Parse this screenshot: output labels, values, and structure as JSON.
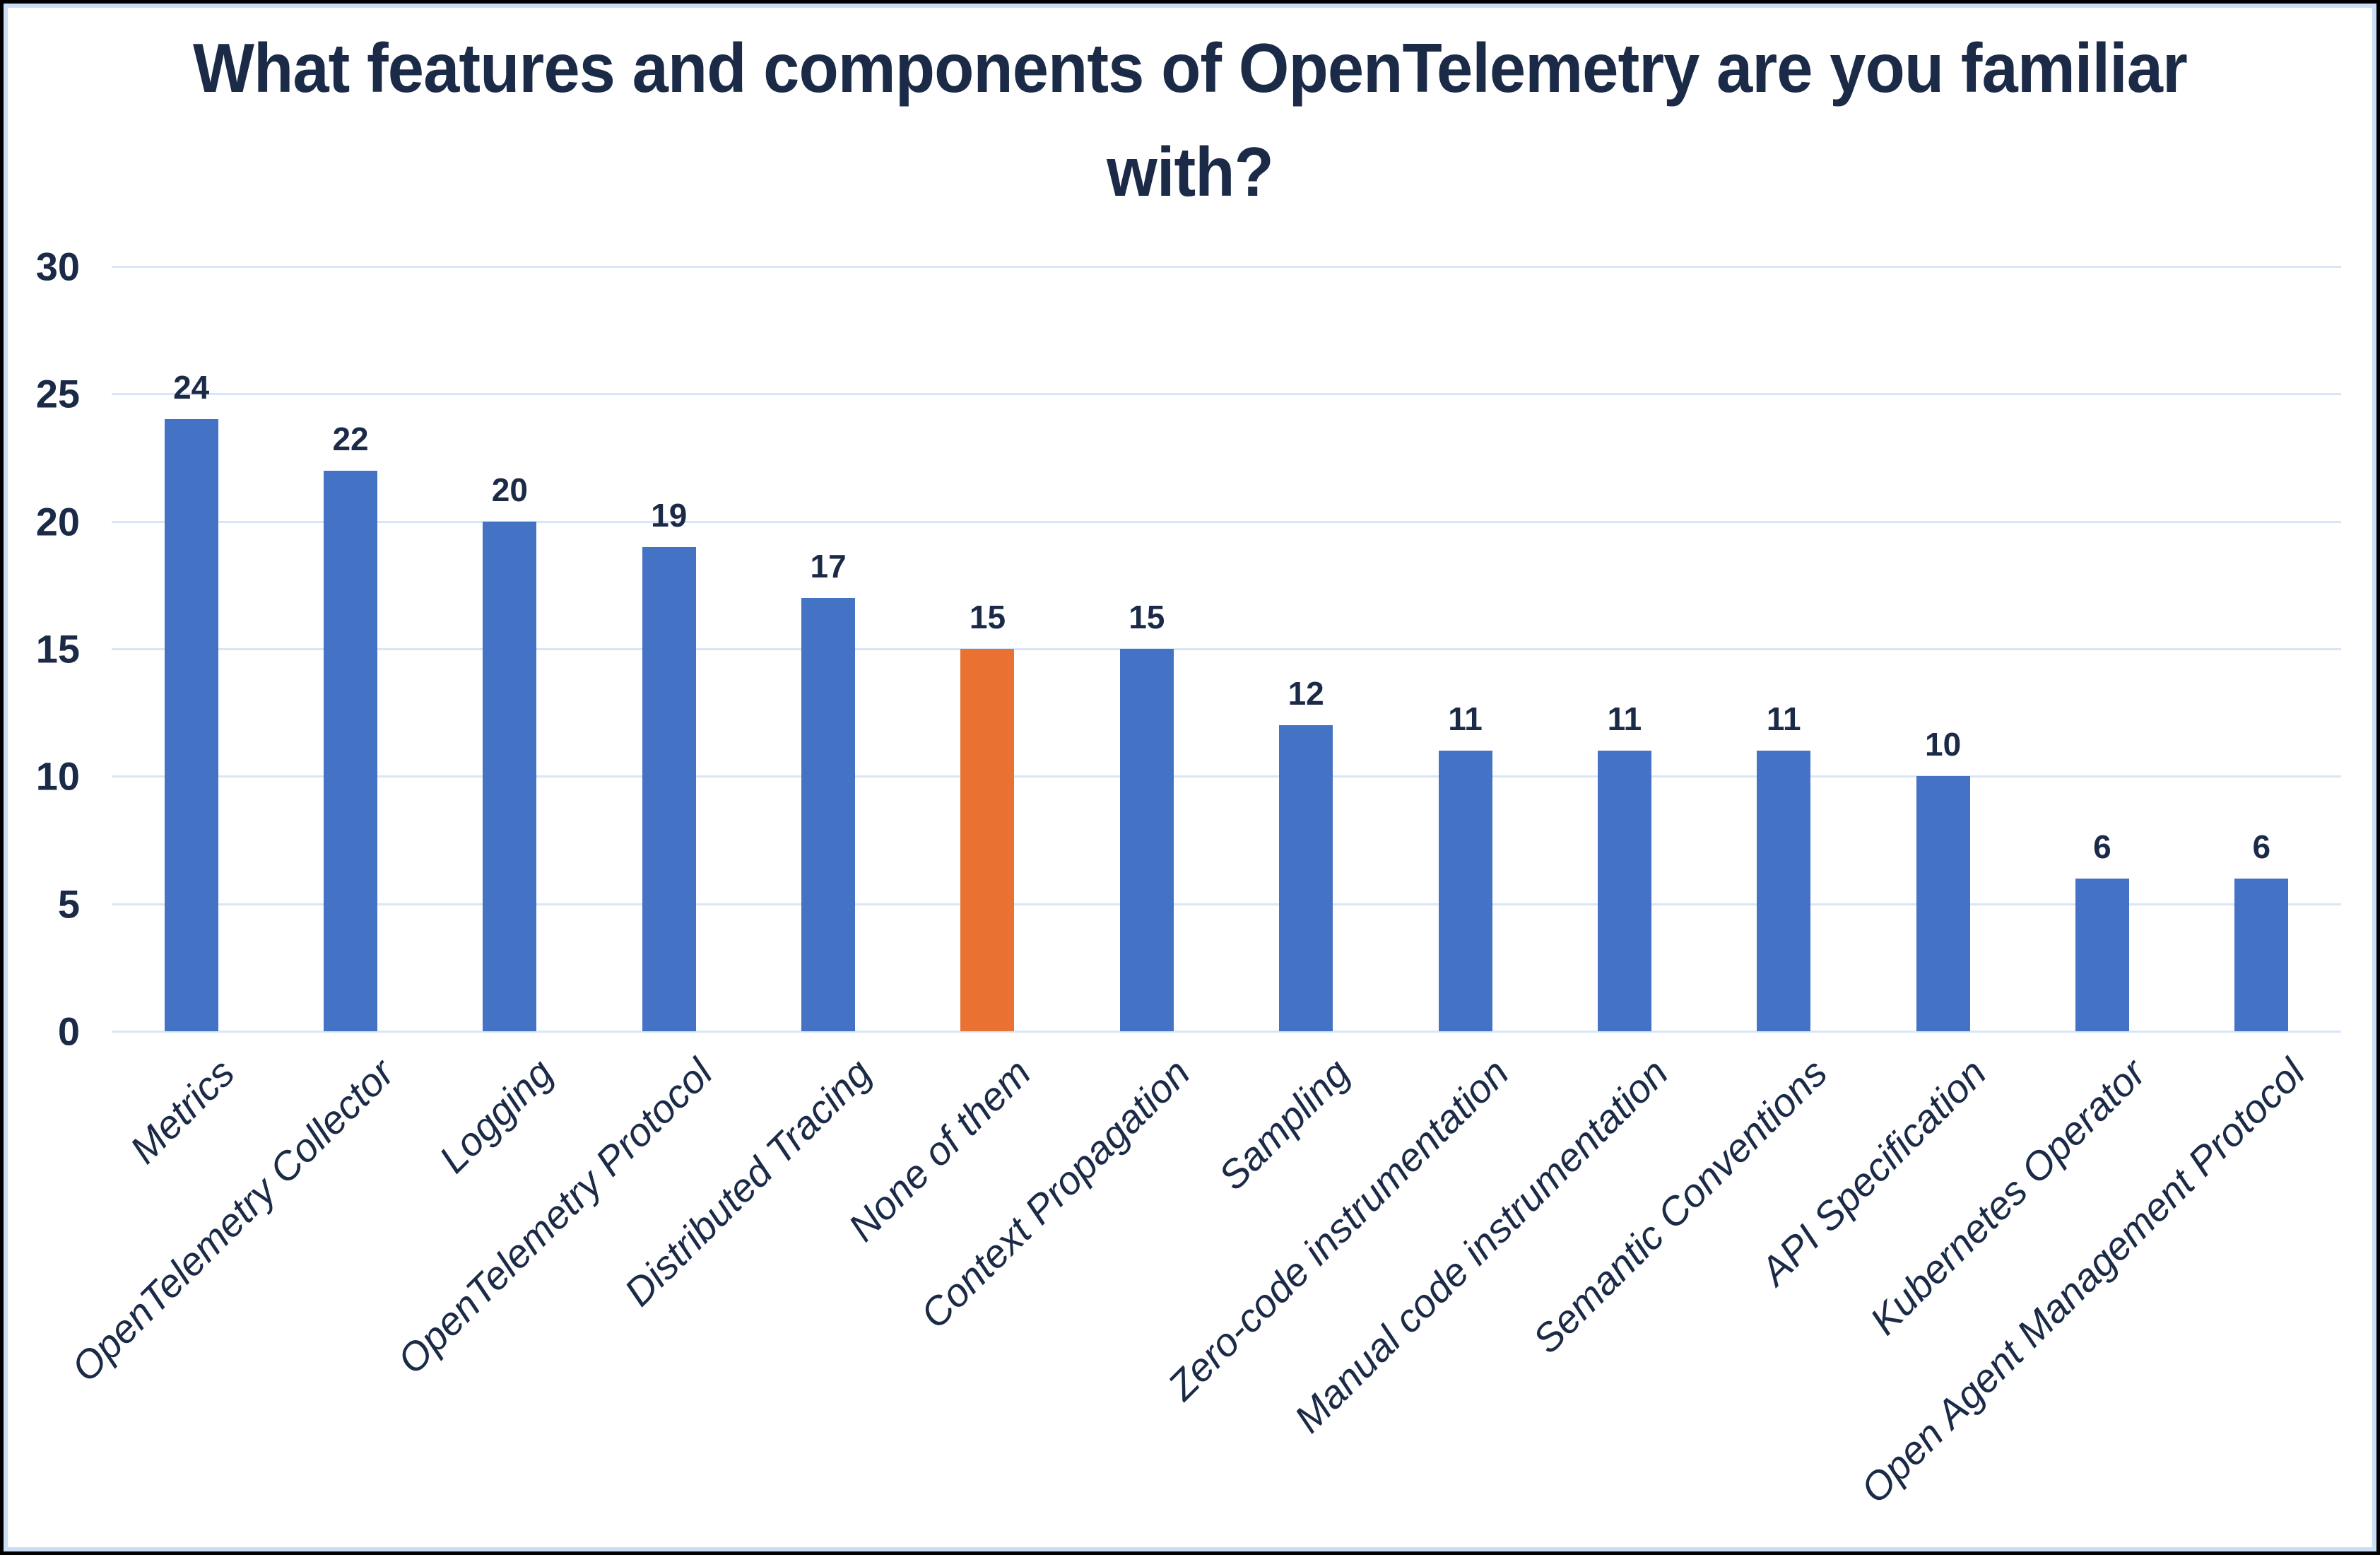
{
  "frame": {
    "outer_border_color": "#010101",
    "inner_border_color": "#CBDEF5",
    "background": "#FFFFFF"
  },
  "chart_data": {
    "type": "bar",
    "title": "What features and components of OpenTelemetry are you familiar with?",
    "categories": [
      "Metrics",
      "OpenTelemetry Collector",
      "Logging",
      "OpenTelemetry Protocol",
      "Distributed Tracing",
      "None of them",
      "Context Propagation",
      "Sampling",
      "Zero-code instrumentation",
      "Manual code instrumentation",
      "Semantic Conventions",
      "API Specification",
      "Kubernetes Operator",
      "Open Agent Management Protocol"
    ],
    "values": [
      24,
      22,
      20,
      19,
      17,
      15,
      15,
      12,
      11,
      11,
      11,
      10,
      6,
      6
    ],
    "highlight_index": 5,
    "bar_color": "#4472C4",
    "highlight_color": "#E97132",
    "gridline_color": "#D9E6F7",
    "text_color": "#1B2B47",
    "xlabel": "",
    "ylabel": "",
    "ylim": [
      0,
      30
    ],
    "y_ticks": [
      30,
      25,
      20,
      15,
      10,
      5,
      0
    ],
    "grid": true,
    "legend_position": "none",
    "x_label_rotation_deg": 45,
    "x_label_style": "italic"
  }
}
